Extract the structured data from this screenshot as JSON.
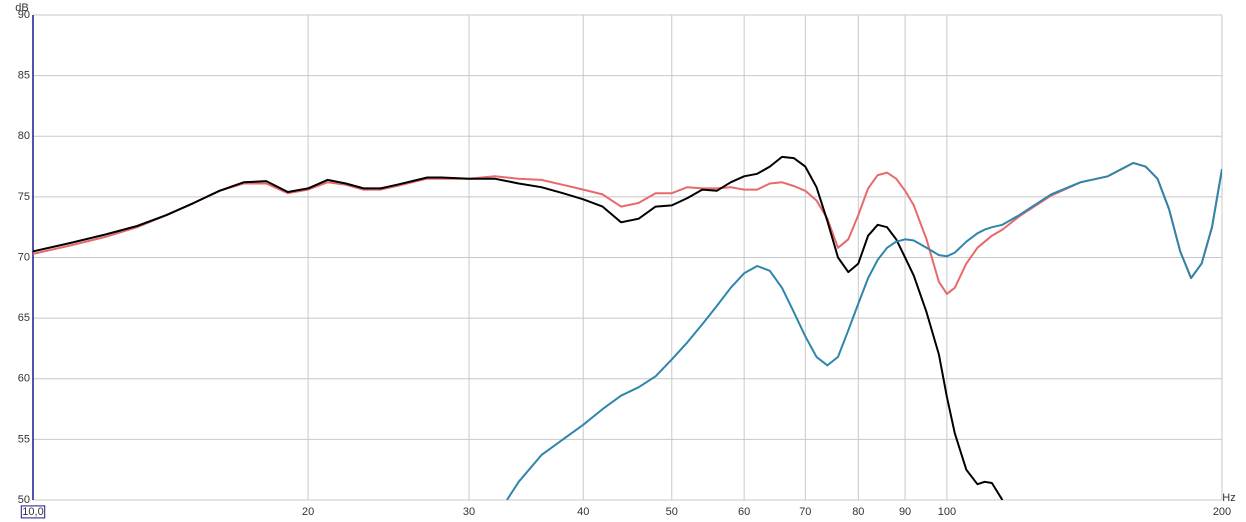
{
  "chart_data": {
    "type": "line",
    "x_label": "Hz",
    "y_label": "dB",
    "log_x": true,
    "grid": true,
    "x": [
      10,
      11,
      12,
      13,
      14,
      15,
      16,
      17,
      18,
      19,
      20,
      21,
      22,
      23,
      24,
      25,
      26,
      27,
      28,
      30,
      32,
      33,
      34,
      36,
      38,
      40,
      42,
      44,
      46,
      48,
      50,
      52,
      54,
      56,
      58,
      60,
      62,
      64,
      66,
      68,
      70,
      72,
      74,
      76,
      78,
      80,
      82,
      84,
      86,
      88,
      90,
      92,
      95,
      98,
      100,
      102,
      105,
      108,
      110,
      112,
      115,
      120,
      130,
      140,
      150,
      160,
      165,
      170,
      175,
      180,
      185,
      190,
      195,
      200
    ],
    "series": [
      {
        "color": "#e8696b",
        "values": [
          70.3,
          71.0,
          71.7,
          72.5,
          73.5,
          74.5,
          75.5,
          76.1,
          76.1,
          75.3,
          75.6,
          76.2,
          76.0,
          75.6,
          75.6,
          75.9,
          76.2,
          76.5,
          76.5,
          76.5,
          76.7,
          76.6,
          76.5,
          76.4,
          76.0,
          75.6,
          75.2,
          74.2,
          74.5,
          75.3,
          75.3,
          75.8,
          75.7,
          75.7,
          75.8,
          75.6,
          75.6,
          76.1,
          76.2,
          75.9,
          75.5,
          74.7,
          73.2,
          70.8,
          71.5,
          73.5,
          75.7,
          76.8,
          77.0,
          76.5,
          75.5,
          74.3,
          71.5,
          68.0,
          67.0,
          67.5,
          69.5,
          70.8,
          71.3,
          71.8,
          72.3,
          73.4,
          75.1,
          76.2,
          76.7,
          77.8,
          77.5,
          76.5,
          74.0,
          70.5,
          68.3,
          69.5,
          72.5,
          77.3
        ]
      },
      {
        "color": "#000000",
        "values": [
          70.5,
          71.2,
          71.9,
          72.6,
          73.5,
          74.5,
          75.5,
          76.2,
          76.3,
          75.4,
          75.7,
          76.4,
          76.1,
          75.7,
          75.7,
          76.0,
          76.3,
          76.6,
          76.6,
          76.5,
          76.5,
          76.3,
          76.1,
          75.8,
          75.3,
          74.8,
          74.2,
          72.9,
          73.2,
          74.2,
          74.3,
          74.9,
          75.6,
          75.5,
          76.2,
          76.7,
          76.9,
          77.5,
          78.3,
          78.2,
          77.5,
          75.8,
          73.0,
          70.0,
          68.8,
          69.5,
          71.8,
          72.7,
          72.5,
          71.5,
          70.0,
          68.5,
          65.5,
          62.0,
          58.5,
          55.5,
          52.5,
          51.3,
          51.5,
          51.4,
          50,
          null,
          null,
          null,
          null,
          null,
          null,
          null,
          null,
          null,
          null,
          null,
          null,
          null
        ]
      },
      {
        "color": "#2e86ab",
        "values": [
          null,
          null,
          null,
          null,
          null,
          null,
          null,
          null,
          null,
          null,
          null,
          null,
          null,
          null,
          null,
          null,
          null,
          null,
          null,
          null,
          null,
          50,
          51.5,
          53.7,
          55.0,
          56.2,
          57.5,
          58.6,
          59.3,
          60.2,
          61.6,
          63.0,
          64.5,
          66.0,
          67.5,
          68.7,
          69.3,
          68.9,
          67.5,
          65.5,
          63.5,
          61.8,
          61.1,
          61.8,
          64.0,
          66.2,
          68.3,
          69.8,
          70.8,
          71.3,
          71.5,
          71.4,
          70.8,
          70.2,
          70.1,
          70.4,
          71.3,
          72.0,
          72.3,
          72.5,
          72.7,
          73.5,
          75.2,
          76.2,
          76.7,
          77.8,
          77.5,
          76.5,
          74.0,
          70.5,
          68.3,
          69.5,
          72.5,
          77.3
        ]
      }
    ],
    "xlim": [
      10,
      200
    ],
    "xticks": [
      {
        "value": 10,
        "label": "10,0"
      },
      20,
      30,
      40,
      50,
      60,
      70,
      80,
      90,
      100,
      200
    ],
    "ylim": [
      50,
      90
    ],
    "yticks": [
      50,
      55,
      60,
      65,
      70,
      75,
      80,
      85,
      90
    ]
  }
}
